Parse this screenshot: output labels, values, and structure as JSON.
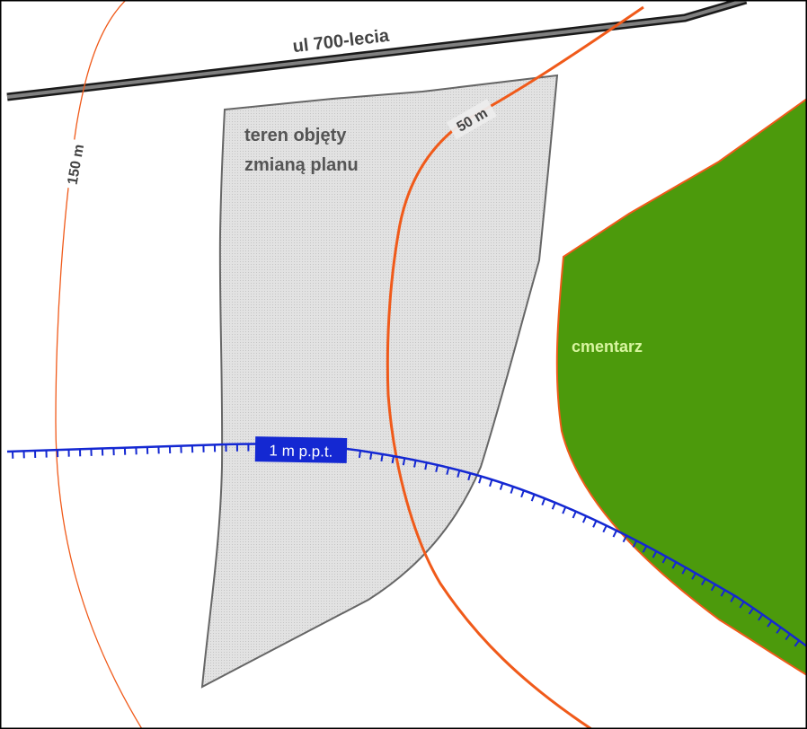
{
  "labels": {
    "street": "ul 700-lecia",
    "plan_area_line1": "teren objęty",
    "plan_area_line2": "zmianą planu",
    "cemetery": "cmentarz",
    "contour_50": "50 m",
    "contour_150": "150 m",
    "groundwater": "1 m p.p.t."
  },
  "colors": {
    "background": "#ffffff",
    "frame": "#000000",
    "road_fill": "#808080",
    "road_outline": "#1a1a1a",
    "plan_area_fill": "#dcdcdc",
    "plan_area_outline": "#666666",
    "plan_area_text": "#555555",
    "cemetery_fill": "#4c9a0c",
    "cemetery_outline": "#f05a1a",
    "cemetery_text": "#d8f5a0",
    "buffer_line": "#f05a1a",
    "groundwater_line": "#1428d2",
    "groundwater_label_bg": "#1428d2",
    "groundwater_label_text": "#ffffff",
    "road_text": "#444444"
  }
}
